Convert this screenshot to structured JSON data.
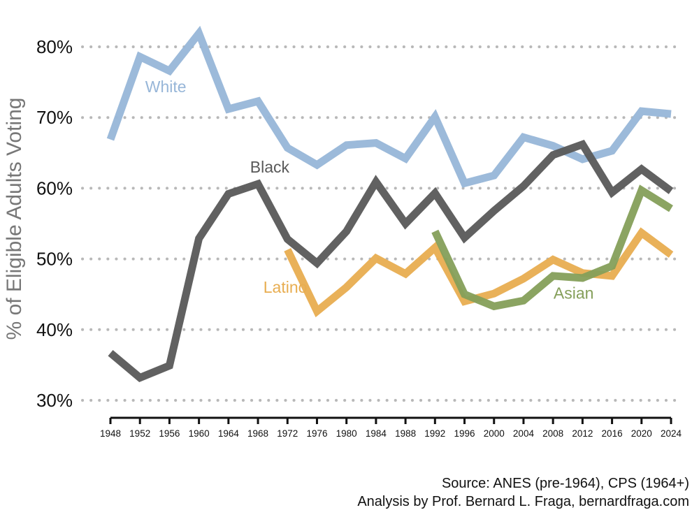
{
  "chart_data": {
    "type": "line",
    "ylabel": "% of Eligible Adults Voting",
    "xlabel": "",
    "ylim": [
      30,
      82
    ],
    "yticks": [
      30,
      40,
      50,
      60,
      70,
      80
    ],
    "ytick_labels": [
      "30%",
      "40%",
      "50%",
      "60%",
      "70%",
      "80%"
    ],
    "x": [
      1948,
      1952,
      1956,
      1960,
      1964,
      1968,
      1972,
      1976,
      1980,
      1984,
      1988,
      1992,
      1996,
      2000,
      2004,
      2008,
      2012,
      2016,
      2020,
      2024
    ],
    "xtick_labels": [
      "1948",
      "1952",
      "1956",
      "1960",
      "1964",
      "1968",
      "1972",
      "1976",
      "1980",
      "1984",
      "1988",
      "1992",
      "1996",
      "2000",
      "2004",
      "2008",
      "2012",
      "2016",
      "2020",
      "2024"
    ],
    "grid": "horizontal dotted",
    "series": [
      {
        "name": "White",
        "color": "#97b6d8",
        "x": [
          1948,
          1952,
          1956,
          1960,
          1964,
          1968,
          1972,
          1976,
          1980,
          1984,
          1988,
          1992,
          1996,
          2000,
          2004,
          2008,
          2012,
          2016,
          2020,
          2024
        ],
        "values": [
          66.9,
          78.6,
          76.6,
          81.9,
          71.2,
          72.3,
          65.7,
          63.3,
          66.1,
          66.4,
          64.2,
          70.1,
          60.7,
          61.8,
          67.2,
          66.0,
          64.1,
          65.3,
          70.9,
          70.5
        ]
      },
      {
        "name": "Black",
        "color": "#595959",
        "x": [
          1948,
          1952,
          1956,
          1960,
          1964,
          1968,
          1972,
          1976,
          1980,
          1984,
          1988,
          1992,
          1996,
          2000,
          2004,
          2008,
          2012,
          2016,
          2020,
          2024
        ],
        "values": [
          36.7,
          33.2,
          34.9,
          52.9,
          59.2,
          60.6,
          52.8,
          49.4,
          53.9,
          60.9,
          55.0,
          59.3,
          53.0,
          56.8,
          60.3,
          64.7,
          66.2,
          59.4,
          62.7,
          59.6
        ]
      },
      {
        "name": "Latino",
        "color": "#e8ad50",
        "x": [
          1972,
          1976,
          1980,
          1984,
          1988,
          1992,
          1996,
          2000,
          2004,
          2008,
          2012,
          2016,
          2020,
          2024
        ],
        "values": [
          51.3,
          42.6,
          46.0,
          50.1,
          47.9,
          51.6,
          44.0,
          45.1,
          47.2,
          49.9,
          48.0,
          47.6,
          53.7,
          50.6
        ]
      },
      {
        "name": "Asian",
        "color": "#859f5a",
        "x": [
          1992,
          1996,
          2000,
          2004,
          2008,
          2012,
          2016,
          2020,
          2024
        ],
        "values": [
          53.9,
          45.0,
          43.3,
          44.1,
          47.6,
          47.3,
          49.0,
          59.7,
          57.1
        ]
      }
    ]
  },
  "source": {
    "line1": "Source: ANES (pre-1964), CPS (1964+)",
    "line2": "Analysis by Prof. Bernard L. Fraga, bernardfraga.com"
  }
}
